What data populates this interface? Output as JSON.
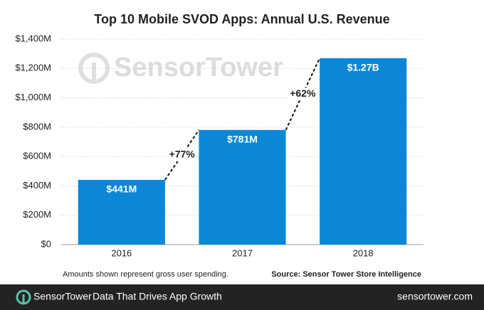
{
  "chart_data": {
    "type": "bar",
    "title": "Top 10 Mobile SVOD Apps: Annual U.S. Revenue",
    "categories": [
      "2016",
      "2017",
      "2018"
    ],
    "values": [
      441,
      781,
      1270
    ],
    "value_labels": [
      "$441M",
      "$781M",
      "$1.27B"
    ],
    "color": "#0b87d6",
    "ylim": [
      0,
      1400
    ],
    "yticks": [
      {
        "value": 0,
        "label": "$0"
      },
      {
        "value": 200,
        "label": "$200M"
      },
      {
        "value": 400,
        "label": "$400M"
      },
      {
        "value": 600,
        "label": "$600M"
      },
      {
        "value": 800,
        "label": "$800M"
      },
      {
        "value": 1000,
        "label": "$1,000M"
      },
      {
        "value": 1200,
        "label": "$1,200M"
      },
      {
        "value": 1400,
        "label": "$1,400M"
      }
    ],
    "grid": true,
    "annotations": [
      "+77%",
      "+62%"
    ],
    "watermark": "SensorTower",
    "note": "Amounts shown represent gross user spending.",
    "source": "Source: Sensor Tower Store Intelligence"
  },
  "footer": {
    "brand": "SensorTower",
    "tagline": "Data That Drives App Growth",
    "url": "sensortower.com"
  }
}
